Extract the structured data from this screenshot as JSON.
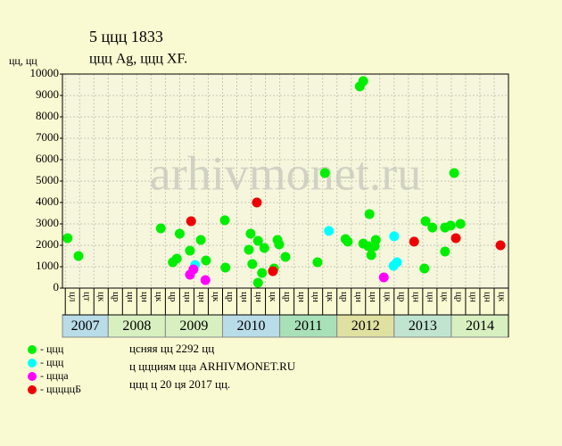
{
  "chart_data": {
    "type": "scatter",
    "title": "5 ццц 1833",
    "subtitle": "ццц Ag, ццц XF.",
    "y_label": "цц, цц",
    "watermark": "arhivmonet.ru",
    "xlim": [
      2007.2,
      2015.0
    ],
    "ylim": [
      0,
      10000
    ],
    "yticks": [
      0,
      1000,
      2000,
      3000,
      4000,
      5000,
      6000,
      7000,
      8000,
      9000,
      10000
    ],
    "grid": true,
    "years": [
      2007,
      2008,
      2009,
      2010,
      2011,
      2012,
      2013,
      2014
    ],
    "year_colors": [
      "#b8dce8",
      "#d8f0c0",
      "#d8f0c0",
      "#b8dce8",
      "#a8e0b8",
      "#e0e0a0",
      "#c0e4d0",
      "#d8f0c0"
    ],
    "quarter_labels": [
      [
        "цл",
        "цт",
        "цк"
      ],
      [
        "цр",
        "цн",
        "цн",
        "цк"
      ],
      [
        "цр",
        "цн",
        "цн",
        "цк"
      ],
      [
        "цр",
        "цн",
        "цн",
        "цк"
      ],
      [
        "цр",
        "цн",
        "цн",
        "цк"
      ],
      [
        "цр",
        "цн",
        "цн",
        "цк"
      ],
      [
        "цр",
        "цн",
        "цн",
        "цк"
      ],
      [
        "цр",
        "цн",
        "цн",
        "цк"
      ]
    ],
    "series": [
      {
        "name": "- ццц",
        "color": "#00ee00",
        "x": [
          2007.29,
          2007.48,
          2008.92,
          2009.13,
          2009.2,
          2009.25,
          2009.43,
          2009.62,
          2009.71,
          2010.04,
          2010.05,
          2010.46,
          2010.49,
          2010.52,
          2010.62,
          2010.62,
          2010.69,
          2010.73,
          2010.9,
          2010.96,
          2010.99,
          2011.1,
          2011.66,
          2011.79,
          2012.15,
          2012.19,
          2012.4,
          2012.46,
          2012.46,
          2012.55,
          2012.57,
          2012.6,
          2012.66,
          2012.68,
          2013.55,
          2013.53,
          2013.67,
          2013.89,
          2013.89,
          2013.99,
          2014.05,
          2014.16
        ],
        "values": [
          2333,
          1500,
          2790,
          1208,
          1375,
          2540,
          1750,
          2250,
          1290,
          3170,
          960,
          1790,
          2540,
          1125,
          2210,
          250,
          710,
          1875,
          917,
          2250,
          2040,
          1460,
          1208,
          5375,
          2290,
          2170,
          9420,
          9670,
          2080,
          1960,
          3460,
          1540,
          1960,
          2250,
          3125,
          917,
          2830,
          1710,
          2830,
          2920,
          5375,
          3000
        ]
      },
      {
        "name": "- ццц",
        "color": "#00ffff",
        "x": [
          2009.52,
          2011.86,
          2012.99,
          2013.0,
          2013.05
        ],
        "values": [
          1080,
          2670,
          1040,
          2420,
          1210
        ]
      },
      {
        "name": "- ццца",
        "color": "#ff00ff",
        "x": [
          2009.43,
          2009.49,
          2009.7,
          2012.82
        ],
        "values": [
          625,
          875,
          375,
          500
        ]
      },
      {
        "name": "- цццццБ",
        "color": "#ee0000",
        "x": [
          2009.45,
          2010.6,
          2010.88,
          2013.35,
          2014.08,
          2014.86
        ],
        "values": [
          3125,
          4000,
          790,
          2170,
          2333,
          2000
        ]
      }
    ],
    "notes": [
      "цcняя цц 2292 цц",
      "ц ццциям цца ARHIVMONET.RU",
      "ццц ц 20 ця 2017 цц."
    ]
  }
}
